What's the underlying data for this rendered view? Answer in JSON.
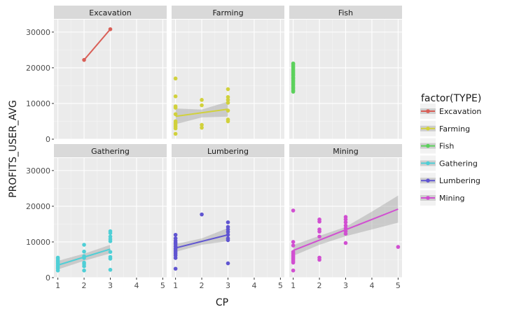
{
  "chart_data": {
    "type": "scatter",
    "layout": "facet-grid 2x3 with linear fit lines and confidence bands",
    "xlabel": "CP",
    "ylabel": "PROFITS_USER_AVG",
    "xlim": [
      0.85,
      5.15
    ],
    "ylim": [
      0,
      33500
    ],
    "x_ticks": [
      1,
      2,
      3,
      4,
      5
    ],
    "y_ticks": [
      0,
      10000,
      20000,
      30000
    ],
    "x_tick_labels": [
      "1",
      "2",
      "3",
      "4",
      "5"
    ],
    "y_tick_labels": [
      "0",
      "10000",
      "20000",
      "30000"
    ],
    "grid": true,
    "legend": {
      "title": "factor(TYPE)",
      "placement": "right"
    },
    "panels": [
      {
        "name": "Excavation",
        "color": "#d95f57",
        "points": [
          [
            2,
            22200
          ],
          [
            3,
            30800
          ]
        ],
        "fit": {
          "x": [
            2,
            3
          ],
          "y": [
            22200,
            30800
          ]
        },
        "band": null
      },
      {
        "name": "Farming",
        "color": "#d1d13c",
        "points": [
          [
            1,
            17000
          ],
          [
            1,
            12000
          ],
          [
            1,
            9200
          ],
          [
            1,
            8800
          ],
          [
            1,
            7000
          ],
          [
            1,
            5000
          ],
          [
            1,
            4500
          ],
          [
            1,
            4000
          ],
          [
            1,
            3500
          ],
          [
            1,
            3000
          ],
          [
            1,
            1500
          ],
          [
            2,
            11000
          ],
          [
            2,
            9500
          ],
          [
            2,
            4000
          ],
          [
            2,
            3200
          ],
          [
            3,
            14000
          ],
          [
            3,
            11800
          ],
          [
            3,
            11000
          ],
          [
            3,
            10200
          ],
          [
            3,
            8000
          ],
          [
            3,
            5500
          ],
          [
            3,
            5000
          ]
        ],
        "fit": {
          "x": [
            1,
            3
          ],
          "y": [
            6400,
            8400
          ]
        },
        "band": {
          "x": [
            1,
            2,
            3
          ],
          "lower": [
            4200,
            6100,
            6300
          ],
          "upper": [
            8600,
            8300,
            10500
          ]
        }
      },
      {
        "name": "Fish",
        "color": "#5cd15c",
        "points": [
          [
            1,
            21200
          ],
          [
            1,
            20800
          ],
          [
            1,
            20300
          ],
          [
            1,
            19900
          ],
          [
            1,
            19400
          ],
          [
            1,
            19000
          ],
          [
            1,
            18600
          ],
          [
            1,
            18200
          ],
          [
            1,
            17800
          ],
          [
            1,
            17300
          ],
          [
            1,
            16900
          ],
          [
            1,
            16400
          ],
          [
            1,
            16000
          ],
          [
            1,
            15500
          ],
          [
            1,
            15100
          ],
          [
            1,
            14600
          ],
          [
            1,
            14200
          ],
          [
            1,
            13700
          ],
          [
            1,
            13300
          ]
        ],
        "fit": null,
        "band": null
      },
      {
        "name": "Gathering",
        "color": "#4fcfd6",
        "points": [
          [
            1,
            5600
          ],
          [
            1,
            5200
          ],
          [
            1,
            4800
          ],
          [
            1,
            4400
          ],
          [
            1,
            4000
          ],
          [
            1,
            3500
          ],
          [
            1,
            3000
          ],
          [
            1,
            2600
          ],
          [
            1,
            2000
          ],
          [
            2,
            9200
          ],
          [
            2,
            7300
          ],
          [
            2,
            6000
          ],
          [
            2,
            5500
          ],
          [
            2,
            4200
          ],
          [
            2,
            3800
          ],
          [
            2,
            3200
          ],
          [
            2,
            2000
          ],
          [
            3,
            13000
          ],
          [
            3,
            12500
          ],
          [
            3,
            11500
          ],
          [
            3,
            10800
          ],
          [
            3,
            10200
          ],
          [
            3,
            7200
          ],
          [
            3,
            5800
          ],
          [
            3,
            5300
          ],
          [
            3,
            2200
          ]
        ],
        "fit": {
          "x": [
            1,
            3
          ],
          "y": [
            3500,
            8000
          ]
        },
        "band": {
          "x": [
            1,
            2,
            3
          ],
          "lower": [
            2300,
            4700,
            6800
          ],
          "upper": [
            4700,
            6700,
            9200
          ]
        }
      },
      {
        "name": "Lumbering",
        "color": "#6055d1",
        "points": [
          [
            1,
            12000
          ],
          [
            1,
            11000
          ],
          [
            1,
            10300
          ],
          [
            1,
            9800
          ],
          [
            1,
            9400
          ],
          [
            1,
            8800
          ],
          [
            1,
            8200
          ],
          [
            1,
            7700
          ],
          [
            1,
            7200
          ],
          [
            1,
            6700
          ],
          [
            1,
            6200
          ],
          [
            1,
            5500
          ],
          [
            1,
            2500
          ],
          [
            2,
            17700
          ],
          [
            3,
            15500
          ],
          [
            3,
            14200
          ],
          [
            3,
            13500
          ],
          [
            3,
            12800
          ],
          [
            3,
            12000
          ],
          [
            3,
            11000
          ],
          [
            3,
            10500
          ],
          [
            3,
            4000
          ]
        ],
        "fit": {
          "x": [
            1,
            3
          ],
          "y": [
            8300,
            12000
          ]
        },
        "band": {
          "x": [
            1,
            2,
            3
          ],
          "lower": [
            7200,
            9200,
            10200
          ],
          "upper": [
            9400,
            11000,
            13900
          ]
        }
      },
      {
        "name": "Mining",
        "color": "#d14fd1",
        "points": [
          [
            1,
            18800
          ],
          [
            1,
            10000
          ],
          [
            1,
            9000
          ],
          [
            1,
            7200
          ],
          [
            1,
            6700
          ],
          [
            1,
            6200
          ],
          [
            1,
            5800
          ],
          [
            1,
            5400
          ],
          [
            1,
            5000
          ],
          [
            1,
            4600
          ],
          [
            1,
            4200
          ],
          [
            1,
            2000
          ],
          [
            2,
            16300
          ],
          [
            2,
            15700
          ],
          [
            2,
            13500
          ],
          [
            2,
            12900
          ],
          [
            2,
            11500
          ],
          [
            2,
            5600
          ],
          [
            2,
            5000
          ],
          [
            3,
            17000
          ],
          [
            3,
            16300
          ],
          [
            3,
            15500
          ],
          [
            3,
            14600
          ],
          [
            3,
            13800
          ],
          [
            3,
            13000
          ],
          [
            3,
            12300
          ],
          [
            3,
            9700
          ],
          [
            5,
            8600
          ]
        ],
        "fit": {
          "x": [
            1,
            5
          ],
          "y": [
            7600,
            19200
          ]
        },
        "band": {
          "x": [
            1,
            2,
            3,
            4,
            5
          ],
          "lower": [
            6100,
            9200,
            11600,
            13500,
            15400
          ],
          "upper": [
            9100,
            11700,
            14200,
            18500,
            23000
          ]
        }
      }
    ]
  }
}
